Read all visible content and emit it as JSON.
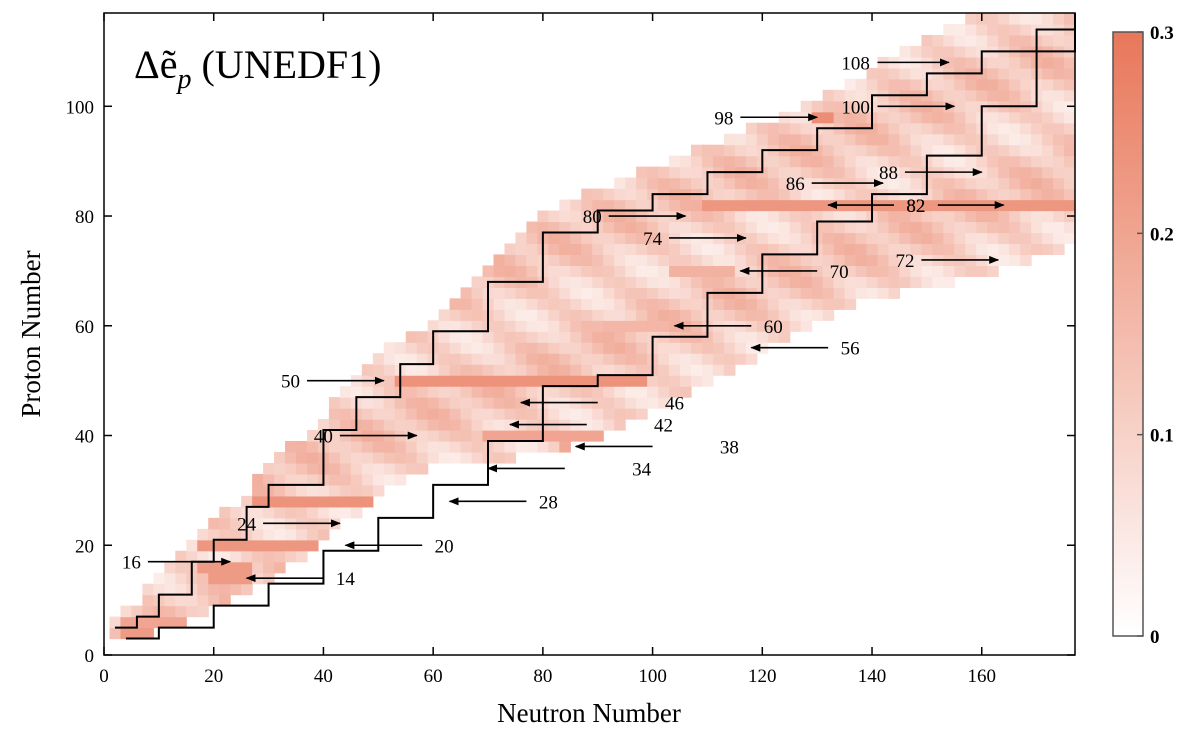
{
  "chart_data": {
    "type": "heatmap",
    "title": "Δẽ",
    "title_subscript": "p",
    "title_suffix": " (UNEDF1)",
    "xlabel": "Neutron Number",
    "ylabel": "Proton Number",
    "xlim": [
      0,
      177
    ],
    "ylim": [
      0,
      117
    ],
    "xticks": [
      0,
      20,
      40,
      60,
      80,
      100,
      120,
      140,
      160
    ],
    "yticks": [
      0,
      20,
      40,
      60,
      80,
      100
    ],
    "colorbar": {
      "range": [
        0,
        0.3
      ],
      "ticks": [
        0,
        0.1,
        0.2,
        0.3
      ],
      "color_low": "#ffffff",
      "color_high": "#e8775a"
    },
    "cell_size": 2,
    "band_outline_color": "#000000",
    "region_lower_edge": [
      [
        4,
        4
      ],
      [
        14,
        6
      ],
      [
        20,
        10
      ],
      [
        30,
        14
      ],
      [
        40,
        22
      ],
      [
        50,
        30
      ],
      [
        60,
        35
      ],
      [
        70,
        36
      ],
      [
        80,
        38
      ],
      [
        90,
        40
      ],
      [
        100,
        46
      ],
      [
        110,
        50
      ],
      [
        120,
        56
      ],
      [
        130,
        62
      ],
      [
        140,
        66
      ],
      [
        150,
        68
      ],
      [
        160,
        70
      ],
      [
        170,
        73
      ],
      [
        177,
        76
      ]
    ],
    "region_upper_edge": [
      [
        2,
        6
      ],
      [
        6,
        8
      ],
      [
        10,
        14
      ],
      [
        16,
        20
      ],
      [
        20,
        24
      ],
      [
        26,
        28
      ],
      [
        30,
        34
      ],
      [
        40,
        42
      ],
      [
        44,
        48
      ],
      [
        50,
        54
      ],
      [
        60,
        60
      ],
      [
        70,
        70
      ],
      [
        80,
        80
      ],
      [
        90,
        84
      ],
      [
        100,
        88
      ],
      [
        110,
        92
      ],
      [
        120,
        96
      ],
      [
        130,
        100
      ],
      [
        140,
        106
      ],
      [
        150,
        112
      ],
      [
        160,
        116
      ],
      [
        177,
        117
      ]
    ],
    "proton_drip_line": [
      [
        2,
        5
      ],
      [
        6,
        7
      ],
      [
        10,
        11
      ],
      [
        16,
        17
      ],
      [
        20,
        21
      ],
      [
        26,
        27
      ],
      [
        30,
        31
      ],
      [
        40,
        41
      ],
      [
        46,
        47
      ],
      [
        54,
        53
      ],
      [
        60,
        59
      ],
      [
        70,
        68
      ],
      [
        80,
        77
      ],
      [
        90,
        81
      ],
      [
        100,
        84
      ],
      [
        110,
        88
      ],
      [
        120,
        92
      ],
      [
        130,
        96
      ],
      [
        140,
        102
      ],
      [
        150,
        106
      ],
      [
        160,
        110
      ],
      [
        170,
        114
      ],
      [
        177,
        117
      ]
    ],
    "neutron_drip_line": [
      [
        4,
        3
      ],
      [
        10,
        5
      ],
      [
        20,
        9
      ],
      [
        30,
        13
      ],
      [
        40,
        19
      ],
      [
        50,
        25
      ],
      [
        60,
        31
      ],
      [
        70,
        39
      ],
      [
        80,
        49
      ],
      [
        90,
        51
      ],
      [
        100,
        58
      ],
      [
        110,
        66
      ],
      [
        120,
        73
      ],
      [
        130,
        79
      ],
      [
        140,
        84
      ],
      [
        150,
        91
      ],
      [
        160,
        100
      ],
      [
        170,
        110
      ],
      [
        177,
        117
      ]
    ],
    "magic_bands": [
      {
        "z": 4,
        "x0": 3,
        "x1": 12,
        "value": 0.22
      },
      {
        "z": 6,
        "x0": 4,
        "x1": 14,
        "value": 0.2
      },
      {
        "z": 14,
        "x0": 20,
        "x1": 26,
        "value": 0.22
      },
      {
        "z": 16,
        "x0": 18,
        "x1": 26,
        "value": 0.22
      },
      {
        "z": 20,
        "x0": 18,
        "x1": 44,
        "value": 0.23
      },
      {
        "z": 28,
        "x0": 28,
        "x1": 62,
        "value": 0.24
      },
      {
        "z": 38,
        "x0": 84,
        "x1": 89,
        "value": 0.19
      },
      {
        "z": 40,
        "x0": 70,
        "x1": 97,
        "value": 0.2
      },
      {
        "z": 50,
        "x0": 53,
        "x1": 98,
        "value": 0.24
      },
      {
        "z": 50,
        "x0": 113,
        "x1": 124,
        "value": 0.26
      },
      {
        "z": 60,
        "x0": 92,
        "x1": 104,
        "value": 0.16
      },
      {
        "z": 70,
        "x0": 104,
        "x1": 114,
        "value": 0.17
      },
      {
        "z": 82,
        "x0": 110,
        "x1": 177,
        "value": 0.23
      },
      {
        "z": 98,
        "x0": 130,
        "x1": 132,
        "value": 0.25
      }
    ],
    "annotations": [
      {
        "label": "16",
        "text_x": 5,
        "text_y": 17,
        "arrow_from": [
          8,
          17
        ],
        "arrow_to": [
          23,
          17
        ]
      },
      {
        "label": "14",
        "text_x": 44,
        "text_y": 14,
        "arrow_from": [
          40,
          14
        ],
        "arrow_to": [
          26,
          14
        ]
      },
      {
        "label": "24",
        "text_x": 26,
        "text_y": 24,
        "arrow_from": [
          29,
          24
        ],
        "arrow_to": [
          43,
          24
        ]
      },
      {
        "label": "20",
        "text_x": 62,
        "text_y": 20,
        "arrow_from": [
          58,
          20
        ],
        "arrow_to": [
          44,
          20
        ]
      },
      {
        "label": "28",
        "text_x": 81,
        "text_y": 28,
        "arrow_from": [
          77,
          28
        ],
        "arrow_to": [
          63,
          28
        ]
      },
      {
        "label": "34",
        "text_x": 98,
        "text_y": 34,
        "arrow_from": [
          84,
          34
        ],
        "arrow_to": [
          70,
          34
        ]
      },
      {
        "label": "38",
        "text_x": 114,
        "text_y": 38,
        "arrow_from": [
          100,
          38
        ],
        "arrow_to": [
          86,
          38
        ]
      },
      {
        "label": "40",
        "text_x": 40,
        "text_y": 40,
        "arrow_from": [
          43,
          40
        ],
        "arrow_to": [
          57,
          40
        ]
      },
      {
        "label": "42",
        "text_x": 102,
        "text_y": 42,
        "arrow_from": [
          88,
          42
        ],
        "arrow_to": [
          74,
          42
        ]
      },
      {
        "label": "46",
        "text_x": 104,
        "text_y": 46,
        "arrow_from": [
          90,
          46
        ],
        "arrow_to": [
          76,
          46
        ]
      },
      {
        "label": "50",
        "text_x": 34,
        "text_y": 50,
        "arrow_from": [
          37,
          50
        ],
        "arrow_to": [
          51,
          50
        ]
      },
      {
        "label": "56",
        "text_x": 136,
        "text_y": 56,
        "arrow_from": [
          132,
          56
        ],
        "arrow_to": [
          118,
          56
        ]
      },
      {
        "label": "60",
        "text_x": 122,
        "text_y": 60,
        "arrow_from": [
          118,
          60
        ],
        "arrow_to": [
          104,
          60
        ]
      },
      {
        "label": "70",
        "text_x": 134,
        "text_y": 70,
        "arrow_from": [
          130,
          70
        ],
        "arrow_to": [
          116,
          70
        ]
      },
      {
        "label": "72",
        "text_x": 146,
        "text_y": 72,
        "arrow_from": [
          149,
          72
        ],
        "arrow_to": [
          163,
          72
        ]
      },
      {
        "label": "74",
        "text_x": 100,
        "text_y": 76,
        "arrow_from": [
          103,
          76
        ],
        "arrow_to": [
          117,
          76
        ]
      },
      {
        "label": "80",
        "text_x": 89,
        "text_y": 80,
        "arrow_from": [
          92,
          80
        ],
        "arrow_to": [
          106,
          80
        ]
      },
      {
        "label": "82",
        "text_x": 148,
        "text_y": 82,
        "arrow_from": [
          144,
          82
        ],
        "arrow_to": [
          132,
          82
        ]
      },
      {
        "label": "82",
        "text_x": 148,
        "text_y": 82,
        "arrow_from": [
          152,
          82
        ],
        "arrow_to": [
          164,
          82
        ]
      },
      {
        "label": "86",
        "text_x": 126,
        "text_y": 86,
        "arrow_from": [
          129,
          86
        ],
        "arrow_to": [
          142,
          86
        ]
      },
      {
        "label": "88",
        "text_x": 143,
        "text_y": 88,
        "arrow_from": [
          146,
          88
        ],
        "arrow_to": [
          160,
          88
        ]
      },
      {
        "label": "98",
        "text_x": 113,
        "text_y": 98,
        "arrow_from": [
          116,
          98
        ],
        "arrow_to": [
          130,
          98
        ]
      },
      {
        "label": "100",
        "text_x": 137,
        "text_y": 100,
        "arrow_from": [
          141,
          100
        ],
        "arrow_to": [
          155,
          100
        ]
      },
      {
        "label": "108",
        "text_x": 137,
        "text_y": 108,
        "arrow_from": [
          141,
          108
        ],
        "arrow_to": [
          154,
          108
        ]
      }
    ]
  }
}
